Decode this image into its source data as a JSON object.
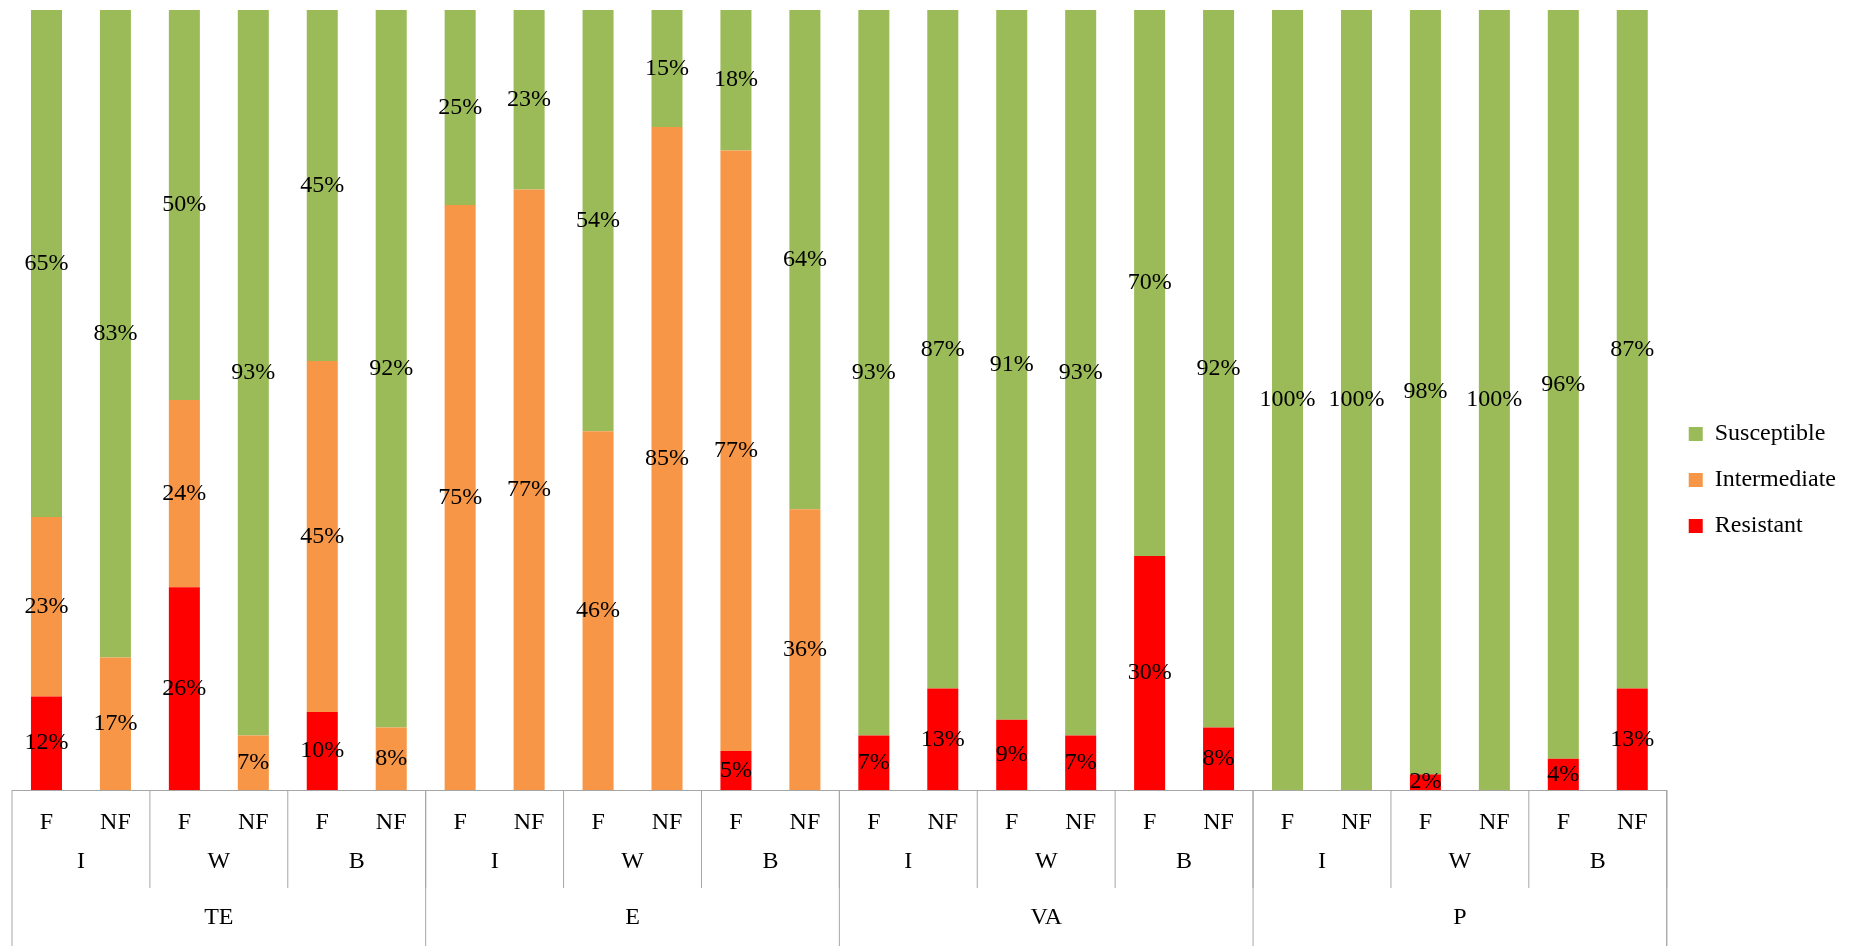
{
  "chart_data": {
    "type": "bar",
    "stacked": true,
    "legend": "right",
    "grid": false,
    "categories": [
      "F",
      "NF",
      "F",
      "NF",
      "F",
      "NF",
      "F",
      "NF",
      "F",
      "NF",
      "F",
      "NF",
      "F",
      "NF",
      "F",
      "NF",
      "F",
      "NF",
      "F",
      "NF",
      "F",
      "NF",
      "F",
      "NF"
    ],
    "series": [
      {
        "name": "Resistant",
        "color": "#ff0000",
        "values": [
          12,
          null,
          26,
          null,
          10,
          null,
          null,
          null,
          null,
          null,
          5,
          null,
          7,
          13,
          9,
          7,
          30,
          8,
          null,
          null,
          2,
          null,
          4,
          13
        ],
        "value_labels": [
          "12%",
          null,
          "26%",
          null,
          "10%",
          null,
          null,
          null,
          null,
          null,
          "5%",
          null,
          "7%",
          "13%",
          "9%",
          "7%",
          "30%",
          "8%",
          null,
          null,
          "2%",
          null,
          "4%",
          "13%"
        ]
      },
      {
        "name": "Intermediate",
        "color": "#f79646",
        "values": [
          23,
          17,
          24,
          7,
          45,
          8,
          75,
          77,
          46,
          85,
          77,
          36,
          null,
          null,
          null,
          null,
          null,
          null,
          null,
          null,
          null,
          null,
          null,
          null
        ],
        "value_labels": [
          "23%",
          "17%",
          "24%",
          "7%",
          "45%",
          "8%",
          "75%",
          "77%",
          "46%",
          "85%",
          "77%",
          "36%",
          null,
          null,
          null,
          null,
          null,
          null,
          null,
          null,
          null,
          null,
          null,
          null
        ]
      },
      {
        "name": "Susceptible",
        "color": "#9bbb59",
        "values": [
          65,
          83,
          50,
          93,
          45,
          92,
          25,
          23,
          54,
          15,
          18,
          64,
          93,
          87,
          91,
          93,
          70,
          92,
          100,
          100,
          98,
          100,
          96,
          87
        ],
        "value_labels": [
          "65%",
          "83%",
          "50%",
          "93%",
          "45%",
          "92%",
          "25%",
          "23%",
          "54%",
          "15%",
          "18%",
          "64%",
          "93%",
          "87%",
          "91%",
          "93%",
          "70%",
          "92%",
          "100%",
          "100%",
          "98%",
          "100%",
          "96%",
          "87%"
        ]
      }
    ],
    "annotations": [
      "I",
      "W",
      "B",
      "I",
      "W",
      "B",
      "I",
      "W",
      "B",
      "I",
      "W",
      "B",
      "TE",
      "E",
      "VA",
      "P"
    ]
  }
}
